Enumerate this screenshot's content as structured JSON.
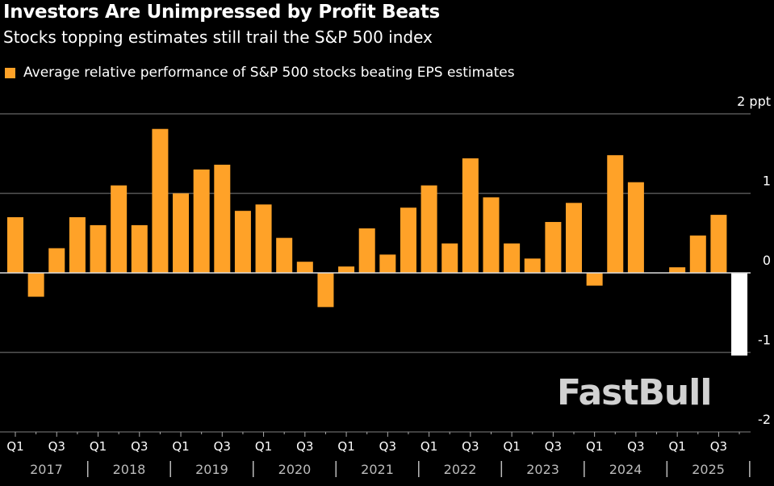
{
  "title": "Investors Are Unimpressed by Profit Beats",
  "subtitle": "Stocks topping estimates still trail the S&P 500 index",
  "watermark": "FastBull",
  "colors": {
    "bar": "#FFA228",
    "latest_bar": "#FFFFFF",
    "grid": "#555555",
    "zero_line": "#DDDDDD"
  },
  "chart_data": {
    "type": "bar",
    "title": "Investors Are Unimpressed by Profit Beats",
    "subtitle": "Stocks topping estimates still trail the S&P 500 index",
    "legend": [
      {
        "name": "Average relative performance of S&P 500 stocks beating EPS estimates",
        "color": "#FFA228"
      }
    ],
    "legend_placement": "top-left",
    "ylim": [
      -2,
      2
    ],
    "yticks": [
      {
        "value": 2,
        "label": "2 ppt"
      },
      {
        "value": 1,
        "label": "1"
      },
      {
        "value": 0,
        "label": "0"
      },
      {
        "value": -1,
        "label": "-1"
      },
      {
        "value": -2,
        "label": "-2"
      }
    ],
    "grid": true,
    "years": [
      "2017",
      "2018",
      "2019",
      "2020",
      "2021",
      "2022",
      "2023",
      "2024",
      "2025"
    ],
    "quarter_labels": [
      "Q1",
      "Q3"
    ],
    "categories": [
      "2017 Q1",
      "2017 Q2",
      "2017 Q3",
      "2017 Q4",
      "2018 Q1",
      "2018 Q2",
      "2018 Q3",
      "2018 Q4",
      "2019 Q1",
      "2019 Q2",
      "2019 Q3",
      "2019 Q4",
      "2020 Q1",
      "2020 Q2",
      "2020 Q3",
      "2020 Q4",
      "2021 Q1",
      "2021 Q2",
      "2021 Q3",
      "2021 Q4",
      "2022 Q1",
      "2022 Q2",
      "2022 Q3",
      "2022 Q4",
      "2023 Q1",
      "2023 Q2",
      "2023 Q3",
      "2023 Q4",
      "2024 Q1",
      "2024 Q2",
      "2024 Q3",
      "2024 Q4",
      "2025 Q1",
      "2025 Q2",
      "2025 Q3",
      "2025 Q4"
    ],
    "values": [
      0.7,
      -0.3,
      0.31,
      0.7,
      0.6,
      1.1,
      0.6,
      1.81,
      1.0,
      1.3,
      1.36,
      0.78,
      0.86,
      0.44,
      0.14,
      -0.43,
      0.08,
      0.56,
      0.23,
      0.82,
      1.1,
      0.37,
      1.44,
      0.95,
      0.37,
      0.18,
      0.64,
      0.88,
      -0.16,
      1.48,
      1.14,
      null,
      0.07,
      0.47,
      0.73,
      -1.04
    ],
    "highlighted": [
      "2025 Q4"
    ]
  }
}
